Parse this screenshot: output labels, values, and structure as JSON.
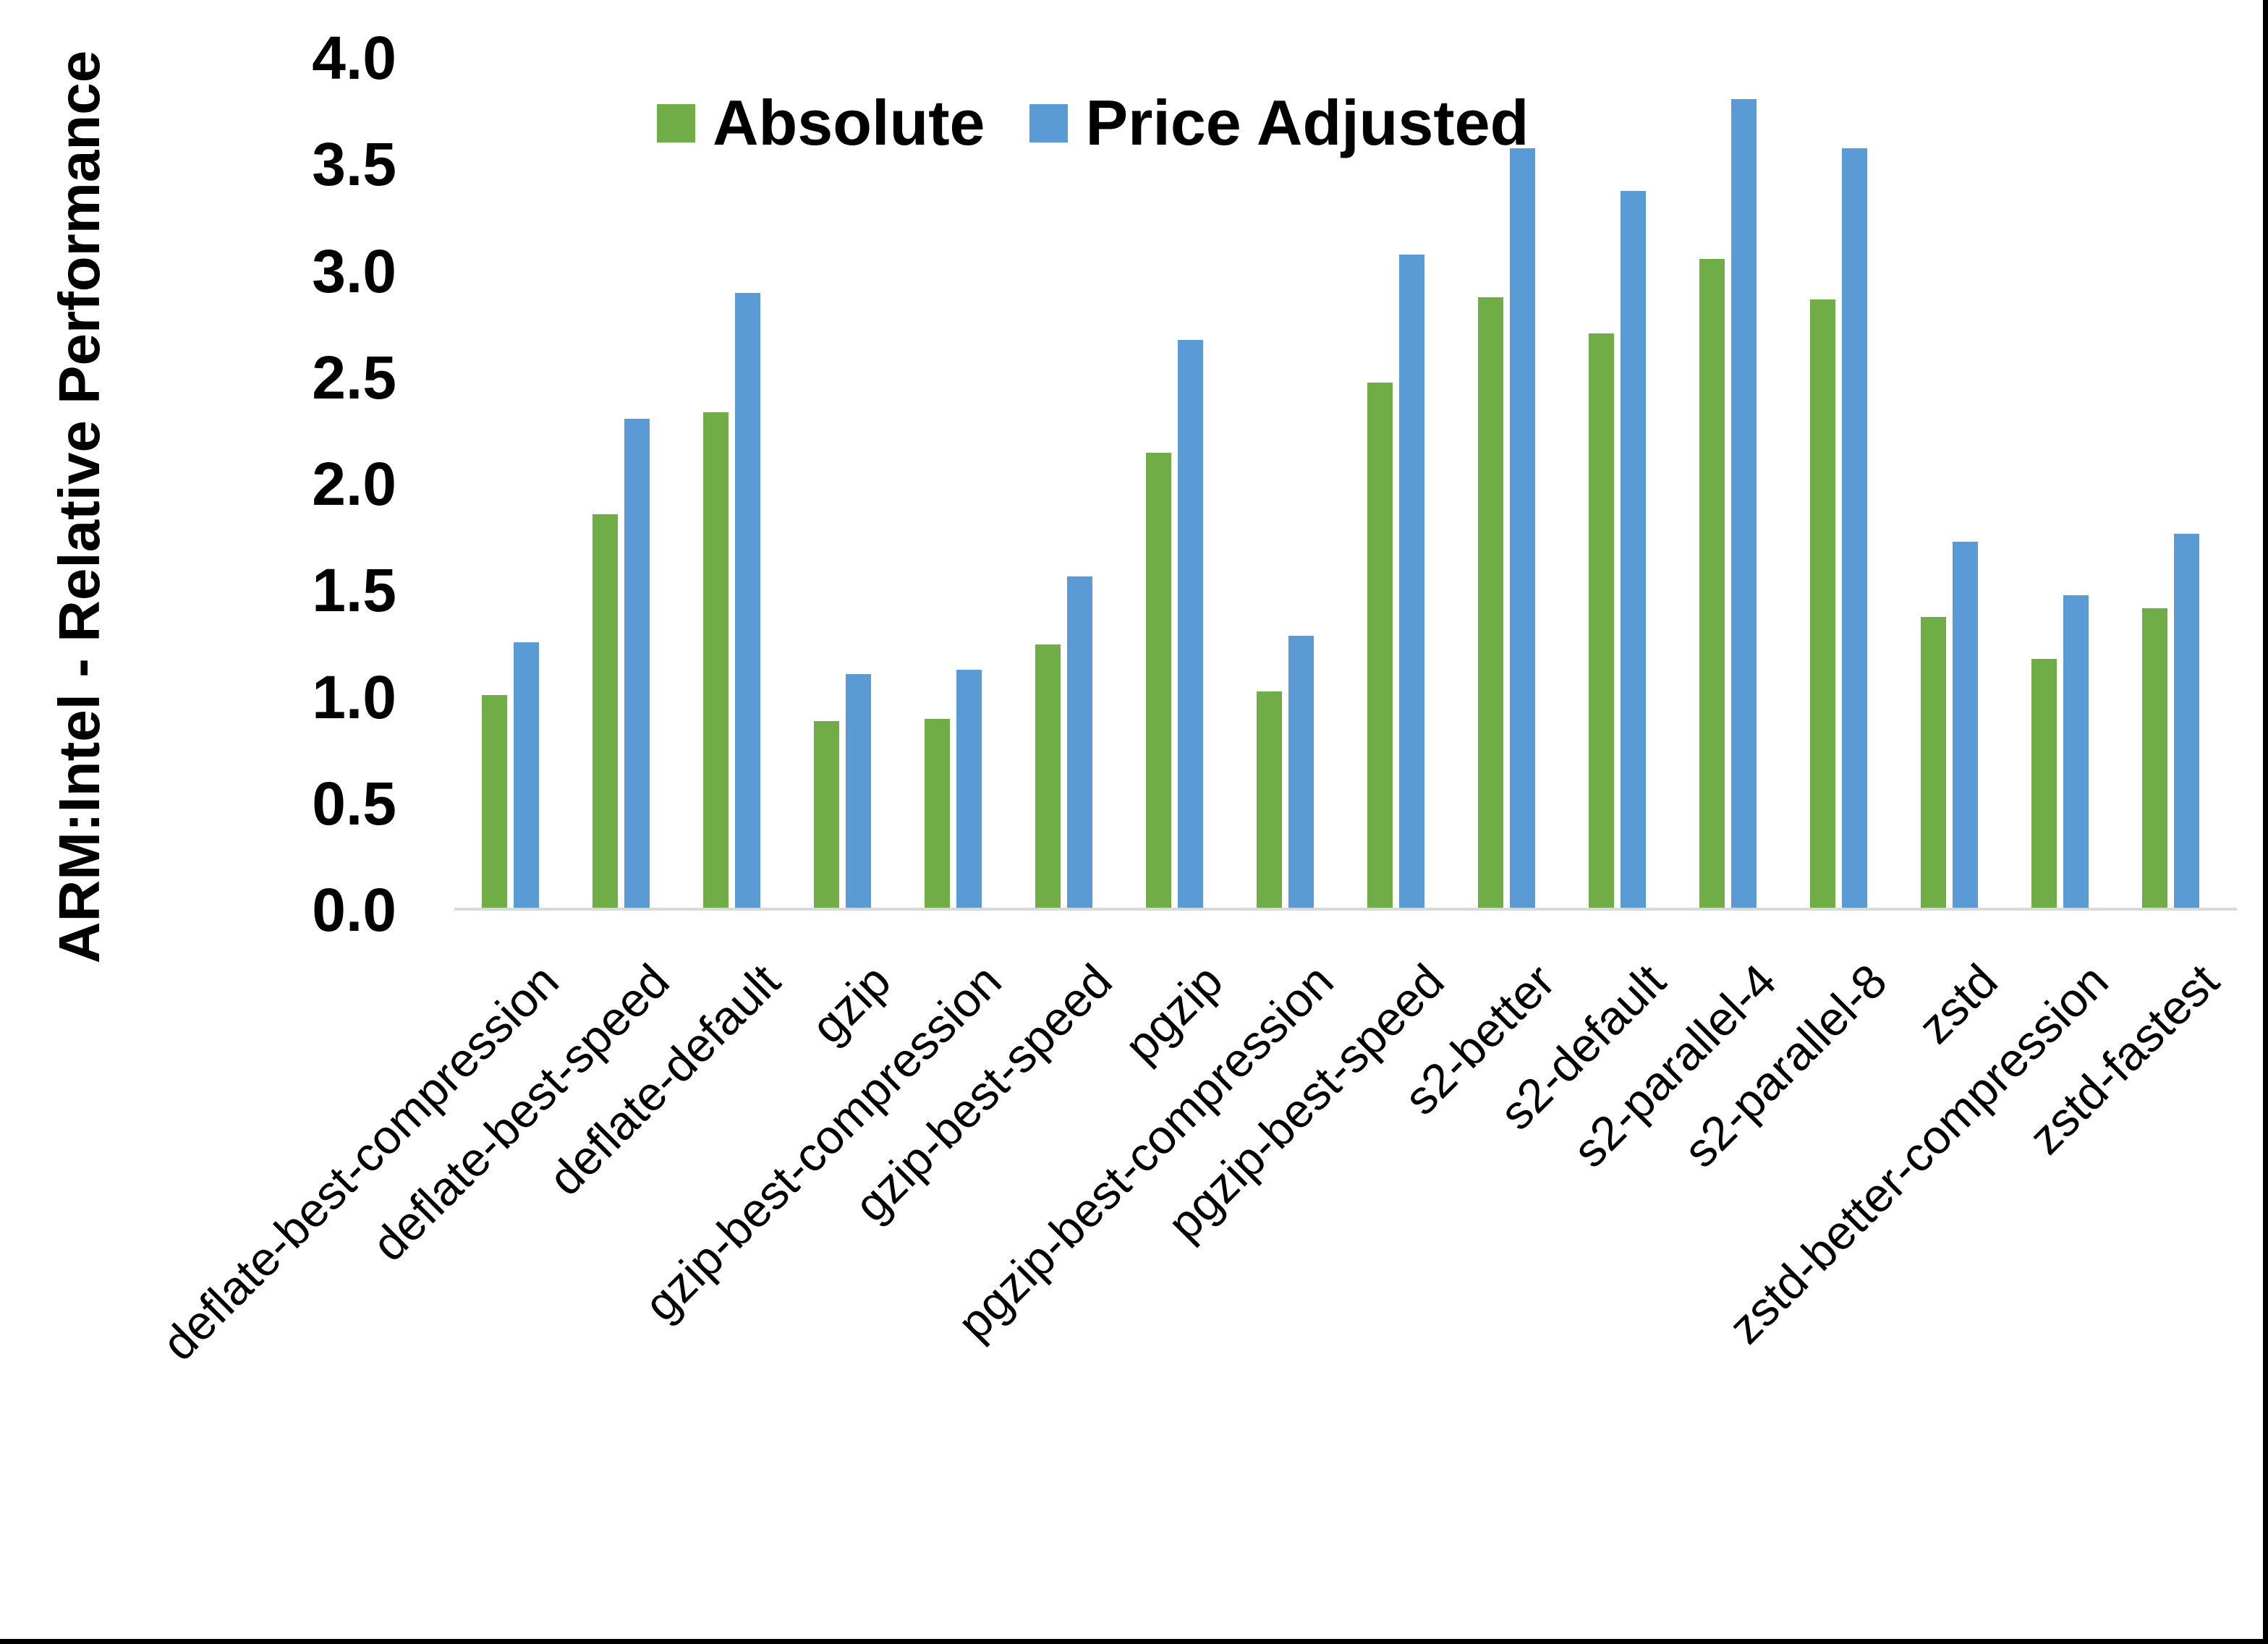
{
  "page": {
    "background": "#FFFFFF",
    "bottom_border_color": "#000000",
    "right_border_color": "#000000"
  },
  "chart_data": {
    "type": "bar",
    "title": "",
    "xlabel": "",
    "ylabel": "ARM:Intel - Relative Performance",
    "ylim": [
      0.0,
      4.0
    ],
    "ytick_step": 0.5,
    "ytick_labels": [
      "4.0",
      "3.5",
      "3.0",
      "2.5",
      "2.0",
      "1.5",
      "1.0",
      "0.5",
      "0.0"
    ],
    "grid": false,
    "legend_position": "top",
    "axis_line_color": "#D9D9D9",
    "text_color": "#000000",
    "categories": [
      "deflate-best-compression",
      "deflate-best-speed",
      "deflate-default",
      "gzip",
      "gzip-best-compression",
      "gzip-best-speed",
      "pgzip",
      "pgzip-best-compression",
      "pgzip-best-speed",
      "s2-better",
      "s2-default",
      "s2-parallel-4",
      "s2-parallel-8",
      "zstd",
      "zstd-better-compression",
      "zstd-fastest"
    ],
    "series": [
      {
        "name": "Absolute",
        "color": "#70AD47",
        "values": [
          1.0,
          1.85,
          2.33,
          0.88,
          0.89,
          1.24,
          2.14,
          1.02,
          2.47,
          2.87,
          2.7,
          3.05,
          2.86,
          1.37,
          1.17,
          1.41
        ]
      },
      {
        "name": "Price Adjusted",
        "color": "#5B9BD5",
        "values": [
          1.25,
          2.3,
          2.89,
          1.1,
          1.12,
          1.56,
          2.67,
          1.28,
          3.07,
          3.57,
          3.37,
          3.8,
          3.57,
          1.72,
          1.47,
          1.76
        ]
      }
    ]
  }
}
